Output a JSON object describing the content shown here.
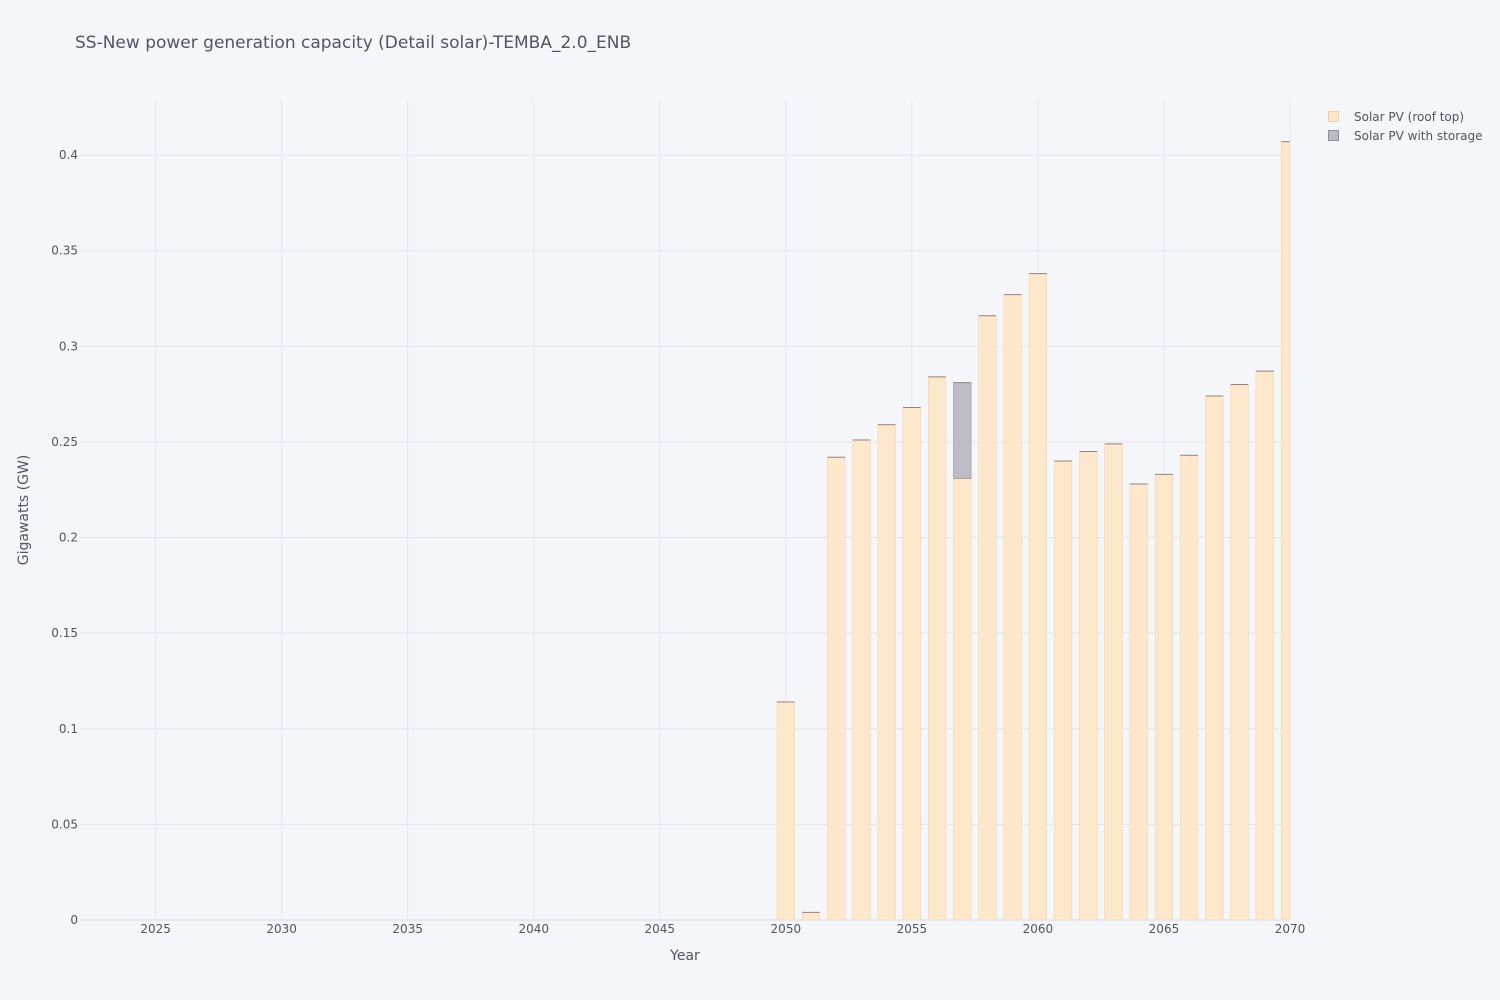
{
  "chart_data": {
    "type": "bar",
    "stacked": true,
    "title": "SS-New power generation capacity (Detail solar)-TEMBA_2.0_ENB",
    "xlabel": "Year",
    "ylabel": "Gigawatts (GW)",
    "xlim": [
      2022,
      2070
    ],
    "ylim": [
      0,
      0.4288
    ],
    "x_ticks": [
      2025,
      2030,
      2035,
      2040,
      2045,
      2050,
      2055,
      2060,
      2065,
      2070
    ],
    "y_ticks": [
      0,
      0.05,
      0.1,
      0.15,
      0.2,
      0.25,
      0.3,
      0.35,
      0.4
    ],
    "y_tick_labels": [
      "0",
      "0.05",
      "0.1",
      "0.15",
      "0.2",
      "0.25",
      "0.3",
      "0.35",
      "0.4"
    ],
    "grid": true,
    "legend_position": "top-right",
    "categories": [
      2050,
      2051,
      2052,
      2053,
      2054,
      2055,
      2056,
      2057,
      2058,
      2059,
      2060,
      2061,
      2062,
      2063,
      2064,
      2065,
      2066,
      2067,
      2068,
      2069,
      2070
    ],
    "series": [
      {
        "name": "Solar PV (roof top)",
        "color": "#fde8cc",
        "values": [
          0.114,
          0.004,
          0.242,
          0.251,
          0.259,
          0.268,
          0.284,
          0.231,
          0.316,
          0.327,
          0.338,
          0.24,
          0.245,
          0.249,
          0.228,
          0.233,
          0.243,
          0.274,
          0.28,
          0.287,
          0.407
        ]
      },
      {
        "name": "Solar PV with storage",
        "color": "#bdbcc4",
        "values": [
          0,
          0,
          0,
          0,
          0,
          0,
          0,
          0.05,
          0,
          0,
          0,
          0,
          0,
          0,
          0,
          0,
          0,
          0,
          0,
          0,
          0
        ]
      }
    ]
  }
}
